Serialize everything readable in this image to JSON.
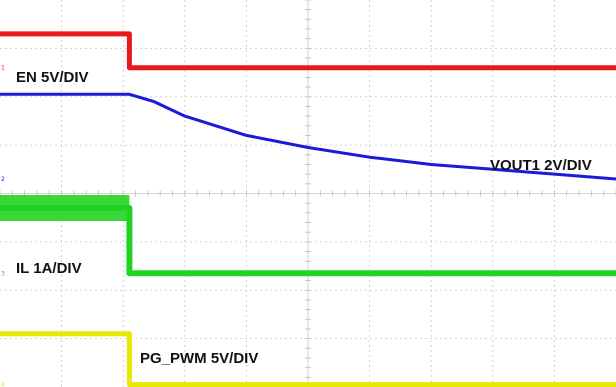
{
  "chart_data": {
    "type": "line",
    "grid": true,
    "grid_divisions": {
      "x": 10,
      "y": 8
    },
    "series": [
      {
        "name": "EN 5V/DIV",
        "color": "#e61a1a",
        "channel_marker": "1",
        "x_div": [
          0,
          2.1,
          2.1,
          10
        ],
        "y_div": [
          7.3,
          7.3,
          6.6,
          6.6
        ]
      },
      {
        "name": "VOUT1 2V/DIV",
        "color": "#1a1ad9",
        "channel_marker": "2",
        "x_div": [
          0,
          2.1,
          2.5,
          3.0,
          4.0,
          5.0,
          6.0,
          7.0,
          8.0,
          9.0,
          10.0
        ],
        "y_div": [
          6.05,
          6.05,
          5.9,
          5.6,
          5.2,
          4.95,
          4.75,
          4.6,
          4.5,
          4.4,
          4.3
        ]
      },
      {
        "name": "IL 1A/DIV",
        "color": "#22d422",
        "channel_marker": "3",
        "x_div": [
          0,
          2.1,
          2.1,
          10
        ],
        "y_div": [
          3.7,
          3.7,
          2.35,
          2.35
        ]
      },
      {
        "name": "PG_PWM 5V/DIV",
        "color": "#e8e800",
        "channel_marker": "4",
        "x_div": [
          0,
          2.1,
          2.1,
          10
        ],
        "y_div": [
          1.1,
          1.1,
          0.05,
          0.05
        ]
      }
    ]
  },
  "labels": {
    "en": "EN 5V/DIV",
    "vout": "VOUT1 2V/DIV",
    "il": "IL 1A/DIV",
    "pg": "PG_PWM 5V/DIV"
  }
}
